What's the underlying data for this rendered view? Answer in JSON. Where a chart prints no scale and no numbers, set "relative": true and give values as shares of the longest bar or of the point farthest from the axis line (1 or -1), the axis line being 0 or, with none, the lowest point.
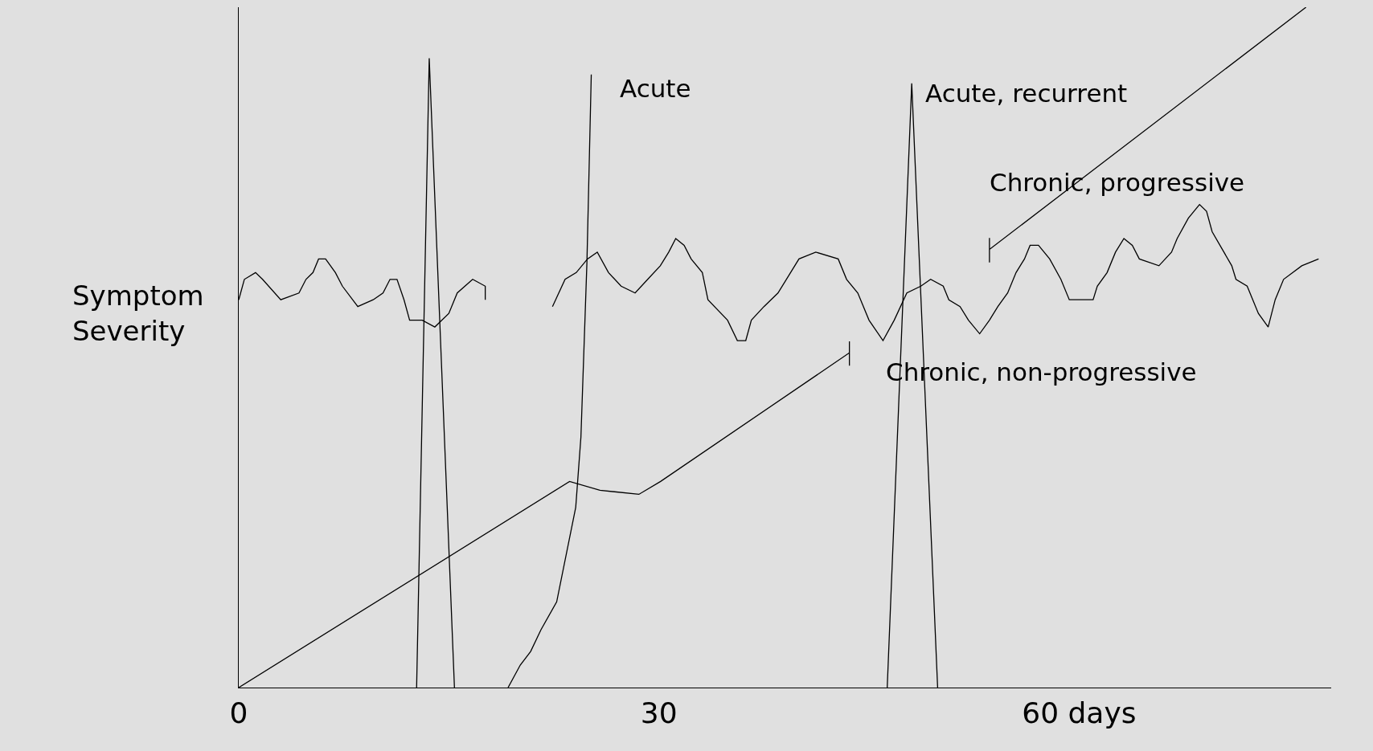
{
  "chart_data": {
    "type": "line",
    "relative": true,
    "ylabel": "Symptom Severity",
    "xlim": [
      0,
      78
    ],
    "xticks": [
      0,
      30,
      {
        "value": 60,
        "label": "60 days"
      }
    ],
    "tick_labels": "x",
    "grid": false,
    "marker": "none",
    "line_style": "solid",
    "series": [
      {
        "color": "#000000",
        "x": [
          12.7,
          13.6,
          15.4,
          null,
          46.3,
          48.05,
          49.9
        ],
        "values": [
          0,
          0.925,
          0,
          null,
          0,
          0.888,
          0
        ]
      },
      {
        "color": "#000000",
        "x": [
          19.23,
          20.1,
          20.84,
          21.58,
          22.7,
          24.06,
          24.43,
          24.86,
          25.17
        ],
        "values": [
          0,
          0.033,
          0.053,
          0.085,
          0.126,
          0.265,
          0.368,
          0.625,
          0.901
        ]
      },
      {
        "color": "#000000",
        "x": [
          0,
          23.62,
          25.79,
          28.57,
          30.12,
          43.6,
          43.6,
          43.6
        ],
        "values": [
          0,
          0.303,
          0.29,
          0.284,
          0.303,
          0.492,
          0.509,
          0.473
        ]
      },
      {
        "color": "#000000",
        "x": [
          53.6,
          53.6,
          53.6,
          76.2
        ],
        "values": [
          0.661,
          0.625,
          0.644,
          1.0
        ]
      },
      {
        "color": "#000000",
        "x": [
          0,
          0.4,
          1.2,
          1.7,
          3.0,
          4.3,
          4.8,
          5.3,
          5.7,
          6.2,
          6.9,
          7.4,
          8.5,
          9.6,
          10.3,
          10.8,
          11.3,
          11.8,
          12.2,
          13.1,
          14.0,
          15.0,
          15.6,
          16.7,
          17.6,
          17.6,
          null,
          22.4,
          23.3,
          24.1,
          24.9,
          25.6,
          26.4,
          27.3,
          28.3,
          29.2,
          30.1,
          30.7,
          31.2,
          31.8,
          32.3,
          33.1,
          33.5,
          34.9,
          35.6,
          36.2,
          36.6,
          37.5,
          38.5,
          39.1,
          40.0,
          41.2,
          42.8,
          43.4,
          44.2,
          45.0,
          46.0,
          46.8,
          47.7,
          48.7,
          49.4,
          50.3,
          50.7,
          51.5,
          52.1,
          52.9,
          53.6,
          54.2,
          54.9,
          55.5,
          56.1,
          56.5,
          57.1,
          57.9,
          58.7,
          59.3,
          60.1,
          61.0,
          61.3,
          62.0,
          62.6,
          63.2,
          63.8,
          64.3,
          65.7,
          66.6,
          67.0,
          67.8,
          68.6,
          69.1,
          69.5,
          70.9,
          71.2,
          72.0,
          72.8,
          73.5,
          74.0,
          74.6,
          75.9,
          77.1
        ],
        "values": [
          0.57,
          0.6,
          0.61,
          0.6,
          0.57,
          0.58,
          0.6,
          0.61,
          0.63,
          0.63,
          0.61,
          0.59,
          0.56,
          0.57,
          0.58,
          0.6,
          0.6,
          0.57,
          0.54,
          0.54,
          0.53,
          0.55,
          0.58,
          0.6,
          0.59,
          0.57,
          null,
          0.56,
          0.6,
          0.61,
          0.63,
          0.64,
          0.61,
          0.59,
          0.58,
          0.6,
          0.62,
          0.64,
          0.66,
          0.65,
          0.63,
          0.61,
          0.57,
          0.54,
          0.51,
          0.51,
          0.54,
          0.56,
          0.58,
          0.6,
          0.63,
          0.64,
          0.63,
          0.6,
          0.58,
          0.54,
          0.51,
          0.54,
          0.58,
          0.59,
          0.6,
          0.59,
          0.57,
          0.56,
          0.54,
          0.52,
          0.54,
          0.56,
          0.58,
          0.61,
          0.63,
          0.65,
          0.65,
          0.63,
          0.6,
          0.57,
          0.57,
          0.57,
          0.59,
          0.61,
          0.64,
          0.66,
          0.65,
          0.63,
          0.62,
          0.64,
          0.66,
          0.69,
          0.71,
          0.7,
          0.67,
          0.62,
          0.6,
          0.59,
          0.55,
          0.53,
          0.57,
          0.6,
          0.62,
          0.63
        ]
      }
    ],
    "annotations": [
      "Acute",
      "Acute, recurrent",
      "Chronic, progressive",
      "Chronic, non-progressive"
    ]
  }
}
